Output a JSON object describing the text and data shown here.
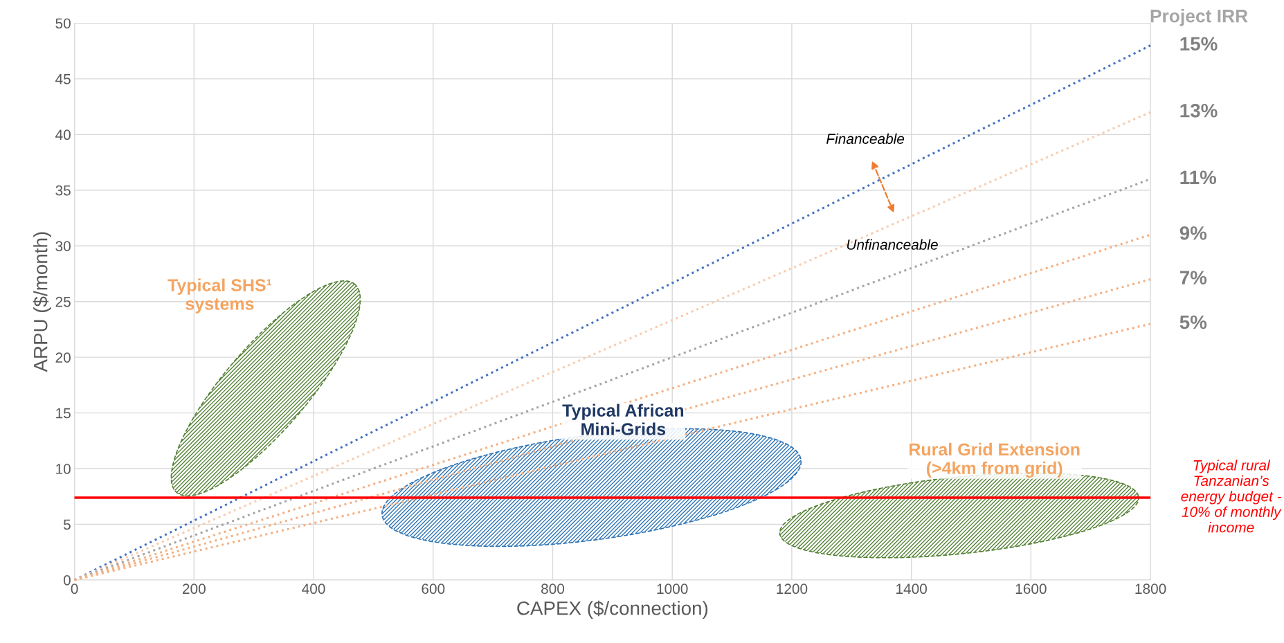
{
  "chart_data": {
    "type": "line",
    "xlabel": "CAPEX ($/connection)",
    "ylabel": "ARPU ($/month)",
    "legend_title": "Project IRR",
    "xlim": [
      0,
      1800
    ],
    "xticks": [
      0,
      200,
      400,
      600,
      800,
      1000,
      1200,
      1400,
      1600,
      1800
    ],
    "ylim": [
      0,
      50
    ],
    "yticks": [
      0,
      5,
      10,
      15,
      20,
      25,
      30,
      35,
      40,
      45,
      50
    ],
    "grid": true,
    "line_style": "dotted",
    "marker": "none",
    "x": [
      0,
      1800
    ],
    "series": [
      {
        "name": "15%",
        "color": "#4472c4",
        "values": [
          0,
          48
        ]
      },
      {
        "name": "13%",
        "color": "#f8cbad",
        "values": [
          0,
          42
        ]
      },
      {
        "name": "11%",
        "color": "#a5a5a5",
        "values": [
          0,
          36
        ]
      },
      {
        "name": "9%",
        "color": "#f4b183",
        "values": [
          0,
          31
        ]
      },
      {
        "name": "7%",
        "color": "#f4b183",
        "values": [
          0,
          27
        ]
      },
      {
        "name": "5%",
        "color": "#f4b183",
        "values": [
          0,
          23
        ]
      }
    ],
    "ref_lines": [
      {
        "axis": "y",
        "value": 7.4,
        "label": "Typical rural\nTanzanian’s\nenergy budget -\n10% of monthly\nincome",
        "color": "#ff0000",
        "line_style": "solid"
      }
    ],
    "annotations": [
      "Financeable",
      "Unfinanceable",
      "Typical SHS¹\nsystems",
      "Typical African\nMini-Grids",
      "Rural Grid Extension\n(>4km from grid)"
    ]
  }
}
